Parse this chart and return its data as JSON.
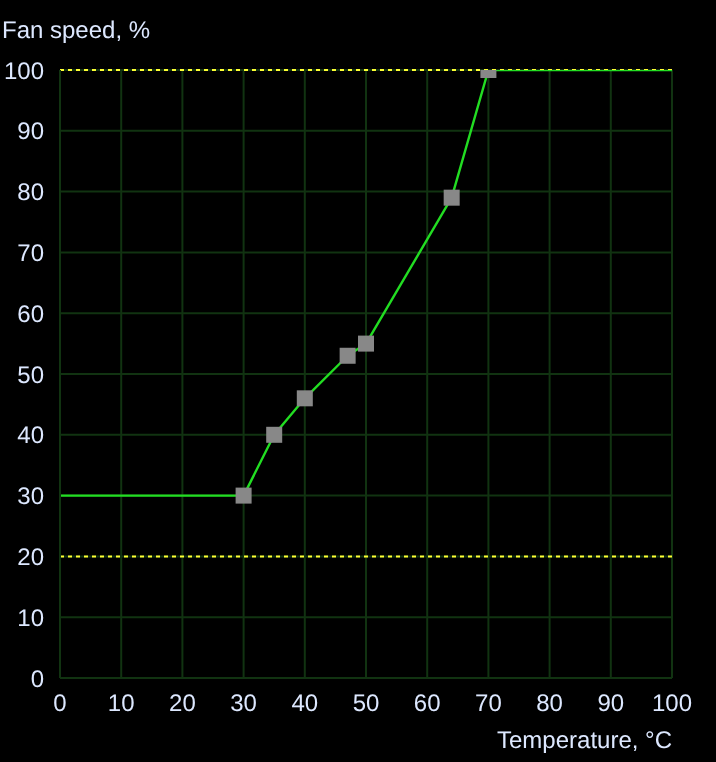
{
  "chart_data": {
    "type": "line",
    "xlabel": "Temperature, °C",
    "ylabel": "Fan speed, %",
    "series": [
      {
        "x": [
          30,
          35,
          40,
          47,
          50,
          64,
          70
        ],
        "values": [
          30,
          40,
          46,
          53,
          55,
          79,
          100
        ],
        "color": "#22dd22",
        "marker": "square"
      },
      {
        "x": [
          0,
          30
        ],
        "values": [
          30,
          30
        ],
        "color": "#22dd22",
        "marker": "none"
      },
      {
        "x": [
          70,
          100
        ],
        "values": [
          100,
          100
        ],
        "color": "#22dd22",
        "marker": "none"
      }
    ],
    "xlim": [
      0,
      100
    ],
    "xticks": [
      0,
      10,
      20,
      30,
      40,
      50,
      60,
      70,
      80,
      90,
      100
    ],
    "ylim": [
      0,
      100
    ],
    "yticks": [
      0,
      10,
      20,
      30,
      40,
      50,
      60,
      70,
      80,
      90,
      100
    ],
    "ref_lines": [
      {
        "axis": "y",
        "value": 20,
        "color": "#ffff33",
        "line_style": "dotted"
      },
      {
        "axis": "y",
        "value": 100,
        "color": "#ffff33",
        "line_style": "dotted"
      }
    ],
    "grid": true,
    "line_style": "solid"
  }
}
